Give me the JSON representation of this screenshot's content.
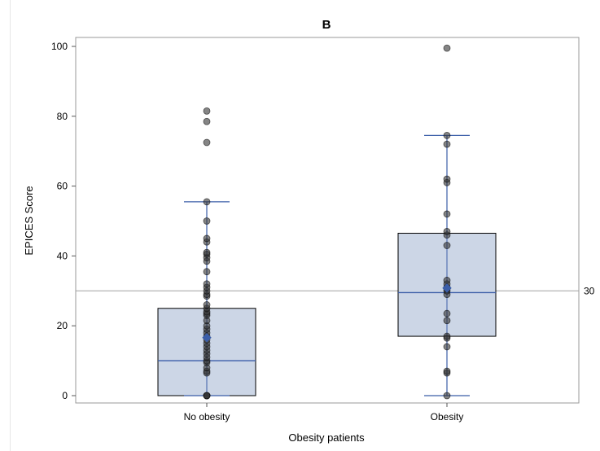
{
  "chart_data": {
    "type": "boxplot",
    "title": "B",
    "xlabel": "Obesity patients",
    "ylabel": "EPICES Score",
    "ylim": [
      0,
      102
    ],
    "yticks": [
      0,
      20,
      40,
      60,
      80,
      100
    ],
    "grid": false,
    "reference_line": {
      "value": 30,
      "label": "30",
      "color": "#a0a0a0"
    },
    "colors": {
      "box_fill": "#ccd6e6",
      "box_stroke": "#000000",
      "median": "#3b5ea8",
      "whisker": "#3b5ea8",
      "mean_marker": "#3b5ea8",
      "point": "#333333"
    },
    "groups": [
      {
        "label": "No obesity",
        "min": 0,
        "q1": 0,
        "median": 10,
        "q3": 25,
        "max": 55.5,
        "mean": 16.6,
        "points": [
          0,
          0,
          0,
          0,
          6.5,
          7,
          8,
          9.5,
          10,
          11,
          12,
          13,
          14,
          15,
          16,
          17,
          18,
          19,
          20,
          21.5,
          23,
          23.5,
          24,
          25,
          26,
          28.5,
          29,
          30,
          31,
          32,
          35.5,
          38.5,
          39.5,
          40.5,
          41,
          44,
          45,
          50,
          55.5,
          72.5,
          78.5,
          81.5
        ]
      },
      {
        "label": "Obesity",
        "min": 0,
        "q1": 17,
        "median": 29.5,
        "q3": 46.5,
        "max": 74.5,
        "mean": 30.8,
        "points": [
          0,
          6.5,
          7,
          14,
          16.5,
          17,
          21.5,
          23.5,
          29,
          30,
          30.5,
          31,
          32,
          33,
          43,
          46,
          47,
          52,
          61,
          62,
          72,
          74.5,
          99.5
        ]
      }
    ]
  }
}
